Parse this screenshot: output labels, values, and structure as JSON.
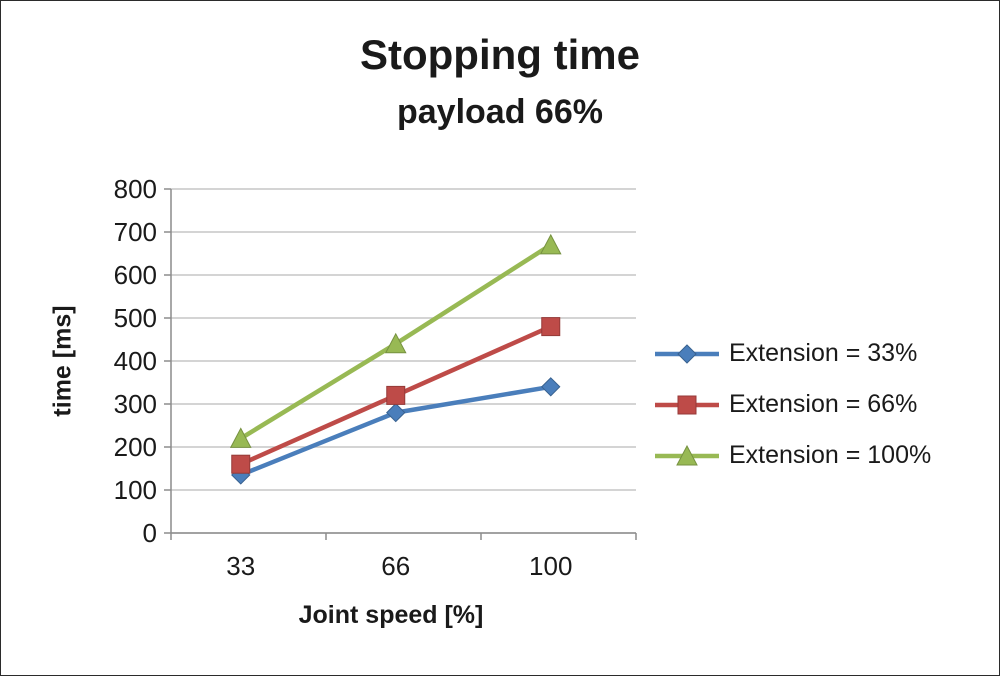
{
  "chart": {
    "title": "Stopping time",
    "subtitle": "payload 66%"
  },
  "chart_data": {
    "type": "line",
    "categories": [
      "33",
      "66",
      "100"
    ],
    "series": [
      {
        "name": "Extension = 33%",
        "color": "#4a7ebb",
        "edge": "#38618f",
        "marker": "diamond",
        "values": [
          135,
          280,
          340
        ]
      },
      {
        "name": "Extension = 66%",
        "color": "#be4b48",
        "edge": "#953a38",
        "marker": "square",
        "values": [
          160,
          320,
          480
        ]
      },
      {
        "name": "Extension = 100%",
        "color": "#98b954",
        "edge": "#769140",
        "marker": "triangle",
        "values": [
          220,
          440,
          670
        ]
      }
    ],
    "title": "Stopping time",
    "subtitle": "payload 66%",
    "xlabel": "Joint speed [%]",
    "ylabel": "time [ms]",
    "ylim": [
      0,
      800
    ],
    "ytick_step": 100,
    "grid": true,
    "legend_position": "right",
    "colors": {
      "gridline": "#c6c6c6",
      "axis": "#8c8c8c",
      "tick_text": "#1a1a1a"
    }
  }
}
